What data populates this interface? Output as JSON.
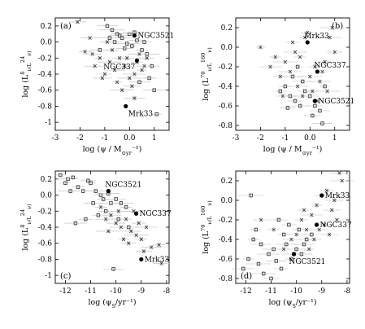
{
  "chart_data": [
    {
      "type": "scatter",
      "panel": "(a)",
      "xlabel": "log (ψ / M_⊙yr⁻¹)",
      "ylabel": "log (L^8_ν/L^24_ν)",
      "xlim": [
        -3,
        1.6
      ],
      "ylim": [
        -1.1,
        0.3
      ],
      "xticks": [
        -3,
        -2,
        -1,
        0,
        1
      ],
      "yticks": [
        -1.0,
        -0.8,
        -0.6,
        -0.4,
        -0.2,
        0.0,
        0.2
      ],
      "series": [
        {
          "marker": "open-square",
          "points": [
            [
              -0.9,
              0.2
            ],
            [
              -0.7,
              0.15
            ],
            [
              -0.5,
              0.1
            ],
            [
              -0.3,
              0.05
            ],
            [
              -0.1,
              -0.02
            ],
            [
              0.1,
              -0.05
            ],
            [
              0.3,
              0.02
            ],
            [
              -0.6,
              0.0
            ],
            [
              -0.2,
              -0.08
            ],
            [
              0.5,
              -0.1
            ],
            [
              0.7,
              -0.15
            ],
            [
              0.9,
              -0.3
            ],
            [
              -0.4,
              0.08
            ],
            [
              0.4,
              -0.5
            ],
            [
              0.8,
              -0.45
            ],
            [
              1.0,
              -0.6
            ],
            [
              -0.8,
              0.05
            ],
            [
              0.0,
              0.1
            ],
            [
              0.2,
              0.12
            ],
            [
              -1.2,
              -0.1
            ],
            [
              0.6,
              0.0
            ],
            [
              1.1,
              -0.9
            ]
          ]
        },
        {
          "marker": "cross",
          "points": [
            [
              -1.8,
              -0.12
            ],
            [
              -1.6,
              0.05
            ],
            [
              -1.4,
              -0.3
            ],
            [
              -1.2,
              -0.2
            ],
            [
              -1.0,
              -0.4
            ],
            [
              -0.8,
              -0.25
            ],
            [
              -0.6,
              -0.35
            ],
            [
              -0.4,
              -0.2
            ],
            [
              -0.2,
              -0.3
            ],
            [
              0.0,
              -0.45
            ],
            [
              0.2,
              -0.4
            ],
            [
              0.4,
              -0.15
            ],
            [
              0.6,
              -0.3
            ],
            [
              -0.5,
              -0.5
            ],
            [
              -0.3,
              -0.6
            ],
            [
              0.1,
              -0.55
            ],
            [
              -0.7,
              -0.1
            ],
            [
              -1.1,
              -0.45
            ],
            [
              0.3,
              -0.25
            ],
            [
              -0.9,
              0.0
            ],
            [
              -0.1,
              -0.2
            ],
            [
              0.5,
              -0.35
            ],
            [
              -1.5,
              -0.15
            ],
            [
              0.7,
              -0.2
            ],
            [
              -2.1,
              0.25
            ],
            [
              0.2,
              -0.7
            ]
          ]
        }
      ],
      "named_points": [
        {
          "name": "NGC3521",
          "x": 0.2,
          "y": 0.08
        },
        {
          "name": "NGC337",
          "x": 0.3,
          "y": -0.23
        },
        {
          "name": "Mrk33",
          "x": -0.15,
          "y": -0.8
        }
      ]
    },
    {
      "type": "scatter",
      "panel": "(b)",
      "xlabel": "log (ψ / M_⊙yr⁻¹)",
      "ylabel": "log (L^70_ν/L^160_ν)",
      "xlim": [
        -3,
        1.6
      ],
      "ylim": [
        -0.85,
        0.3
      ],
      "xticks": [
        -3,
        -2,
        -1,
        0,
        1
      ],
      "yticks": [
        -0.8,
        -0.6,
        -0.4,
        -0.2,
        0.0,
        0.2
      ],
      "series": [
        {
          "marker": "open-square",
          "points": [
            [
              -1.0,
              -0.4
            ],
            [
              -0.8,
              -0.5
            ],
            [
              -0.6,
              -0.55
            ],
            [
              -0.4,
              -0.6
            ],
            [
              -0.2,
              -0.45
            ],
            [
              0.0,
              -0.5
            ],
            [
              0.2,
              -0.6
            ],
            [
              0.4,
              -0.65
            ],
            [
              -0.7,
              -0.3
            ],
            [
              -0.5,
              -0.2
            ],
            [
              -0.3,
              -0.35
            ],
            [
              0.1,
              -0.7
            ],
            [
              0.6,
              -0.4
            ],
            [
              -0.9,
              -0.62
            ],
            [
              0.5,
              -0.78
            ],
            [
              -1.2,
              -0.45
            ]
          ]
        },
        {
          "marker": "cross",
          "points": [
            [
              -2.0,
              0.0
            ],
            [
              -1.6,
              -0.2
            ],
            [
              -1.4,
              -0.1
            ],
            [
              -1.2,
              -0.3
            ],
            [
              -1.0,
              -0.15
            ],
            [
              -0.8,
              -0.25
            ],
            [
              -0.6,
              -0.05
            ],
            [
              -0.4,
              -0.1
            ],
            [
              -0.2,
              0.1
            ],
            [
              0.0,
              -0.3
            ],
            [
              0.2,
              -0.2
            ],
            [
              0.4,
              -0.35
            ],
            [
              0.6,
              -0.15
            ],
            [
              0.8,
              0.1
            ],
            [
              -0.5,
              -0.4
            ],
            [
              -0.3,
              -0.5
            ],
            [
              0.1,
              -0.45
            ],
            [
              0.3,
              -0.55
            ],
            [
              -1.1,
              -0.5
            ],
            [
              -0.7,
              0.05
            ],
            [
              0.5,
              -0.25
            ],
            [
              0.7,
              -0.45
            ],
            [
              -0.1,
              0.15
            ],
            [
              0.9,
              0.2
            ],
            [
              1.0,
              -0.05
            ]
          ]
        }
      ],
      "named_points": [
        {
          "name": "Mrk33",
          "x": -0.1,
          "y": 0.05
        },
        {
          "name": "NGC337",
          "x": 0.3,
          "y": -0.25
        },
        {
          "name": "NGC3521",
          "x": 0.2,
          "y": -0.55
        }
      ]
    },
    {
      "type": "scatter",
      "panel": "(c)",
      "xlabel": "log (ψ_S/yr⁻¹)",
      "ylabel": "log (L^8_ν/L^24_ν)",
      "xlim": [
        -12.4,
        -7.9
      ],
      "ylim": [
        -1.1,
        0.3
      ],
      "xticks": [
        -12,
        -11,
        -10,
        -9,
        -8
      ],
      "yticks": [
        -1.0,
        -0.8,
        -0.6,
        -0.4,
        -0.2,
        0.0,
        0.2
      ],
      "series": [
        {
          "marker": "open-square",
          "points": [
            [
              -12.2,
              0.25
            ],
            [
              -12.0,
              0.15
            ],
            [
              -11.9,
              0.2
            ],
            [
              -11.7,
              0.22
            ],
            [
              -11.5,
              0.1
            ],
            [
              -11.3,
              0.05
            ],
            [
              -11.1,
              0.18
            ],
            [
              -11.0,
              0.15
            ],
            [
              -10.8,
              0.05
            ],
            [
              -10.6,
              0.0
            ],
            [
              -10.5,
              -0.05
            ],
            [
              -10.3,
              0.02
            ],
            [
              -10.2,
              -0.1
            ],
            [
              -10.0,
              -0.05
            ],
            [
              -9.8,
              -0.1
            ],
            [
              -9.6,
              -0.15
            ],
            [
              -11.6,
              -0.35
            ],
            [
              -11.2,
              -0.3
            ],
            [
              -10.4,
              -0.2
            ],
            [
              -9.9,
              -0.3
            ],
            [
              -11.8,
              0.05
            ],
            [
              -10.9,
              -0.1
            ],
            [
              -10.7,
              -0.25
            ],
            [
              -9.5,
              -0.4
            ],
            [
              -10.1,
              -0.92
            ]
          ]
        },
        {
          "marker": "cross",
          "points": [
            [
              -10.6,
              -0.15
            ],
            [
              -10.4,
              -0.3
            ],
            [
              -10.2,
              -0.25
            ],
            [
              -10.0,
              -0.35
            ],
            [
              -9.8,
              -0.4
            ],
            [
              -9.6,
              -0.3
            ],
            [
              -9.4,
              -0.45
            ],
            [
              -9.2,
              -0.5
            ],
            [
              -9.0,
              -0.55
            ],
            [
              -8.8,
              -0.4
            ],
            [
              -8.6,
              -0.65
            ],
            [
              -9.9,
              -0.2
            ],
            [
              -9.7,
              -0.55
            ],
            [
              -9.3,
              -0.2
            ],
            [
              -9.1,
              -0.35
            ],
            [
              -8.9,
              -0.7
            ],
            [
              -8.3,
              -0.62
            ],
            [
              -8.2,
              -0.85
            ],
            [
              -10.3,
              -0.45
            ],
            [
              -9.5,
              -0.6
            ]
          ]
        }
      ],
      "named_points": [
        {
          "name": "NGC3521",
          "x": -10.3,
          "y": 0.05
        },
        {
          "name": "NGC337",
          "x": -9.2,
          "y": -0.23
        },
        {
          "name": "Mrk33",
          "x": -9.0,
          "y": -0.8
        }
      ]
    },
    {
      "type": "scatter",
      "panel": "(d)",
      "xlabel": "log (ψ_S/yr⁻¹)",
      "ylabel": "log (L^70_ν/L^160_ν)",
      "xlim": [
        -12.4,
        -7.9
      ],
      "ylim": [
        -0.85,
        0.3
      ],
      "xticks": [
        -12,
        -11,
        -10,
        -9,
        -8
      ],
      "yticks": [
        -0.8,
        -0.6,
        -0.4,
        -0.2,
        0.0,
        0.2
      ],
      "series": [
        {
          "marker": "open-square",
          "points": [
            [
              -12.1,
              -0.7
            ],
            [
              -11.9,
              -0.6
            ],
            [
              -11.7,
              -0.4
            ],
            [
              -11.5,
              -0.65
            ],
            [
              -11.3,
              -0.75
            ],
            [
              -11.1,
              -0.55
            ],
            [
              -10.9,
              -0.5
            ],
            [
              -10.8,
              -0.62
            ],
            [
              -10.6,
              -0.7
            ],
            [
              -10.4,
              -0.45
            ],
            [
              -10.2,
              -0.6
            ],
            [
              -10.0,
              -0.5
            ],
            [
              -9.8,
              -0.55
            ],
            [
              -9.6,
              -0.4
            ],
            [
              -9.4,
              -0.35
            ],
            [
              -11.6,
              -0.3
            ],
            [
              -11.4,
              -0.45
            ],
            [
              -10.5,
              -0.35
            ],
            [
              -9.9,
              -0.3
            ],
            [
              -11.8,
              0.05
            ],
            [
              -10.3,
              -0.25
            ],
            [
              -9.7,
              -0.45
            ],
            [
              -11.0,
              -0.8
            ],
            [
              -10.7,
              -0.2
            ]
          ]
        },
        {
          "marker": "cross",
          "points": [
            [
              -11.4,
              -0.2
            ],
            [
              -10.9,
              -0.3
            ],
            [
              -10.5,
              -0.5
            ],
            [
              -10.2,
              -0.4
            ],
            [
              -10.0,
              -0.35
            ],
            [
              -9.8,
              -0.2
            ],
            [
              -9.6,
              -0.3
            ],
            [
              -9.4,
              -0.15
            ],
            [
              -9.2,
              -0.05
            ],
            [
              -9.0,
              0.05
            ],
            [
              -8.8,
              0.1
            ],
            [
              -8.6,
              -0.1
            ],
            [
              -8.4,
              -0.2
            ],
            [
              -8.2,
              0.2
            ],
            [
              -9.3,
              -0.4
            ],
            [
              -9.1,
              -0.3
            ],
            [
              -8.9,
              -0.25
            ],
            [
              -8.7,
              -0.35
            ],
            [
              -9.7,
              -0.1
            ],
            [
              -8.5,
              0.0
            ],
            [
              -8.3,
              0.28
            ],
            [
              -10.1,
              -0.55
            ],
            [
              -9.5,
              -0.5
            ]
          ]
        }
      ],
      "named_points": [
        {
          "name": "Mrk33",
          "x": -9.0,
          "y": 0.05
        },
        {
          "name": "NGC337",
          "x": -9.2,
          "y": -0.25
        },
        {
          "name": "NGC3521",
          "x": -10.1,
          "y": -0.55
        }
      ]
    }
  ]
}
